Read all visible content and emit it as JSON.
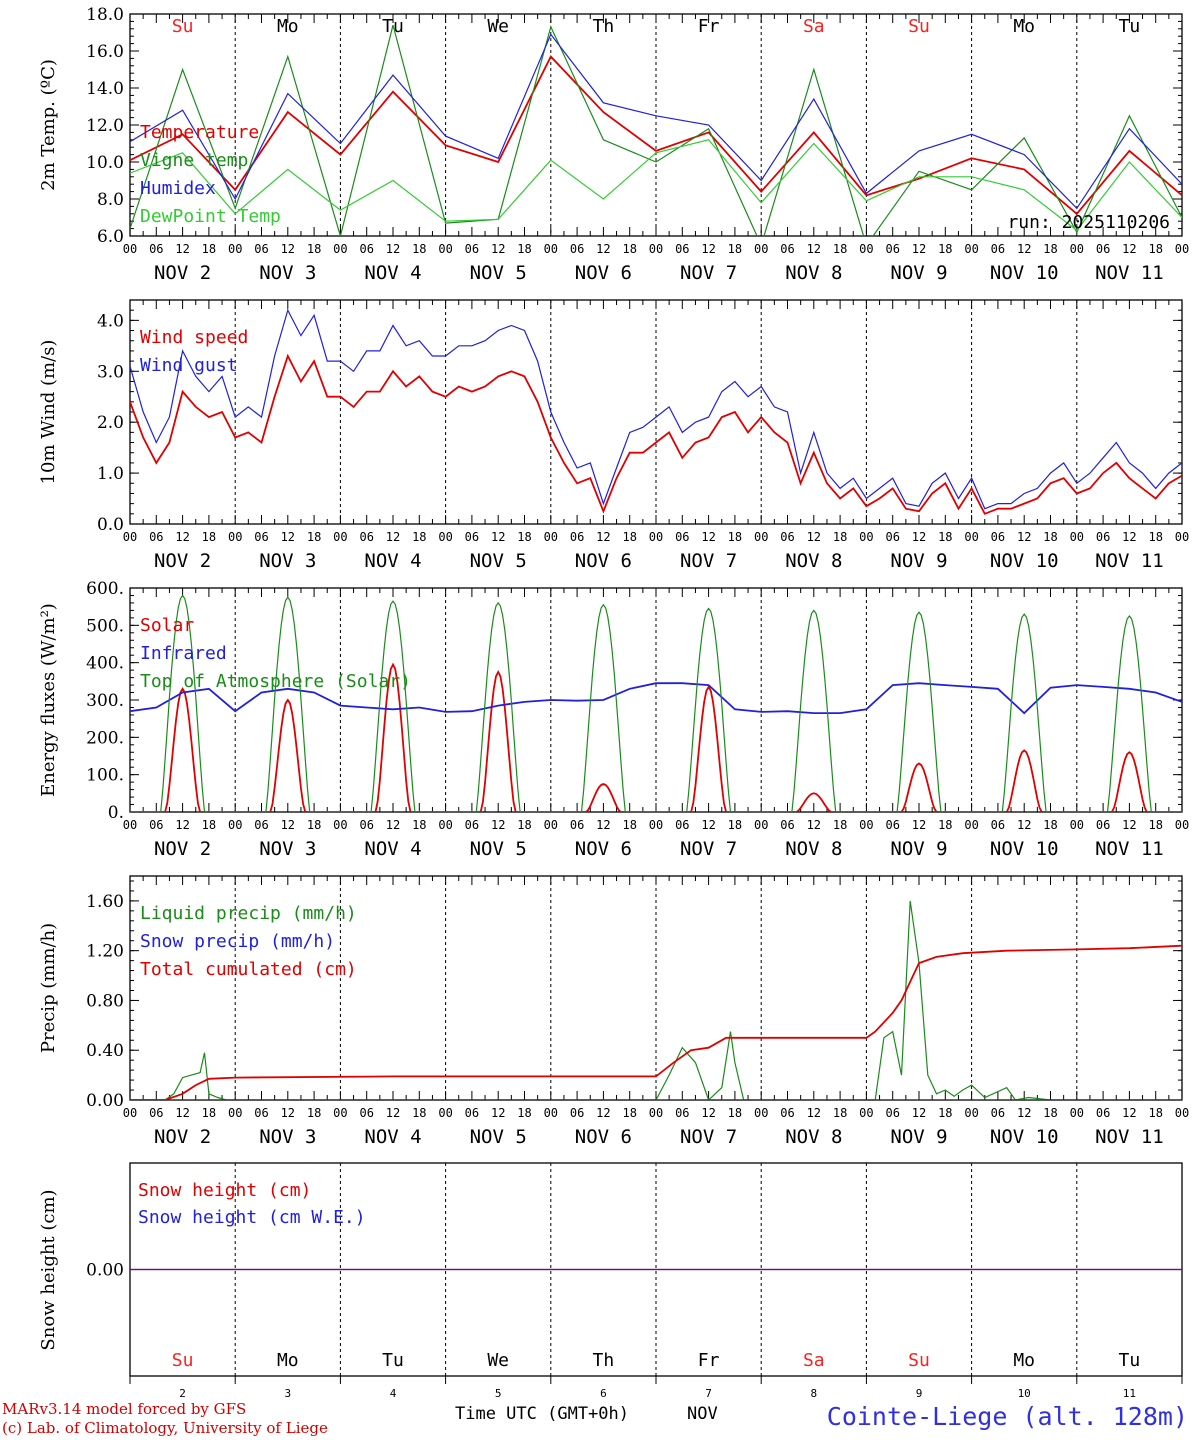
{
  "page": {
    "footer_line1": "MARv3.14 model forced by GFS",
    "footer_line2": "(c) Lab. of Climatology, University of Liege",
    "xaxis_title": "Time UTC (GMT+0h)",
    "xaxis_month": "NOV",
    "station": "Cointe-Liege (alt. 128m)",
    "run_label": "run: 2025110206"
  },
  "colors": {
    "red": "#e00000",
    "green": "#1a8c1a",
    "blue": "#2020dd",
    "lightgreen": "#33cc33",
    "weekend": "#ff2020"
  },
  "day_names": [
    "Su",
    "Mo",
    "Tu",
    "We",
    "Th",
    "Fr",
    "Sa",
    "Su",
    "Mo",
    "Tu"
  ],
  "weekend_flags": [
    1,
    0,
    0,
    0,
    0,
    0,
    1,
    1,
    0,
    0
  ],
  "date_labels": [
    "NOV  2",
    "NOV  3",
    "NOV  4",
    "NOV  5",
    "NOV  6",
    "NOV  7",
    "NOV  8",
    "NOV  9",
    "NOV 10",
    "NOV 11"
  ],
  "date_numbers": [
    "2",
    "3",
    "4",
    "5",
    "6",
    "7",
    "8",
    "9",
    "10",
    "11"
  ],
  "hour_labels": [
    "00",
    "06",
    "12",
    "18"
  ],
  "chart_data": [
    {
      "id": "temp",
      "type": "line",
      "ylabel": "2m Temp. (ºC)",
      "ylim": [
        6.0,
        18.0
      ],
      "yticks": [
        "6.0",
        "8.0",
        "10.0",
        "12.0",
        "14.0",
        "16.0",
        "18.0"
      ],
      "yticks_values": [
        6,
        8,
        10,
        12,
        14,
        16,
        18
      ],
      "x_hours_range": [
        0,
        240
      ],
      "series": [
        {
          "name": "Temperature",
          "color": "red",
          "x": [
            0,
            12,
            24,
            36,
            48,
            60,
            72,
            84,
            96,
            108,
            120,
            132,
            144,
            156,
            168,
            180,
            192,
            204,
            216,
            228,
            240
          ],
          "values": [
            10.1,
            11.5,
            8.5,
            12.7,
            10.4,
            13.8,
            10.9,
            10.0,
            15.7,
            12.7,
            10.6,
            11.6,
            8.4,
            11.6,
            8.2,
            9.1,
            10.2,
            9.6,
            7.2,
            10.6,
            8.2
          ]
        },
        {
          "name": "Vigne temp",
          "color": "green",
          "x": [
            0,
            12,
            24,
            36,
            48,
            60,
            72,
            84,
            96,
            108,
            120,
            132,
            144,
            156,
            168,
            180,
            192,
            204,
            216,
            228,
            240
          ],
          "values": [
            6.4,
            15.0,
            7.5,
            15.7,
            6.0,
            17.4,
            6.7,
            6.9,
            17.3,
            11.2,
            10.0,
            11.8,
            5.5,
            15.0,
            5.5,
            9.5,
            8.5,
            11.3,
            6.2,
            12.5,
            7.0
          ]
        },
        {
          "name": "Humidex",
          "color": "blue",
          "x": [
            0,
            12,
            24,
            36,
            48,
            60,
            72,
            84,
            96,
            108,
            120,
            132,
            144,
            156,
            168,
            180,
            192,
            204,
            216,
            228,
            240
          ],
          "values": [
            11.1,
            12.8,
            8.0,
            13.7,
            11.0,
            14.7,
            11.4,
            10.2,
            16.9,
            13.2,
            12.5,
            12.0,
            9.0,
            13.4,
            8.3,
            10.6,
            11.5,
            10.4,
            7.5,
            11.8,
            8.8
          ]
        },
        {
          "name": "DewPoint Temp",
          "color": "lightgreen",
          "x": [
            0,
            12,
            24,
            36,
            48,
            60,
            72,
            84,
            96,
            108,
            120,
            132,
            144,
            156,
            168,
            180,
            192,
            204,
            216,
            228,
            240
          ],
          "values": [
            9.4,
            10.5,
            7.2,
            9.6,
            7.4,
            9.0,
            6.8,
            6.9,
            10.1,
            8.0,
            10.5,
            11.2,
            7.8,
            11.0,
            7.9,
            9.2,
            9.2,
            8.5,
            6.3,
            10.0,
            7.0
          ]
        }
      ]
    },
    {
      "id": "wind",
      "type": "line",
      "ylabel": "10m Wind (m/s)",
      "ylim": [
        0.0,
        4.4
      ],
      "yticks": [
        "0.0",
        "1.0",
        "2.0",
        "3.0",
        "4.0"
      ],
      "yticks_values": [
        0,
        1,
        2,
        3,
        4
      ],
      "x_hours_range": [
        0,
        240
      ],
      "series": [
        {
          "name": "Wind speed",
          "color": "red",
          "x": [
            0,
            3,
            6,
            9,
            12,
            15,
            18,
            21,
            24,
            27,
            30,
            33,
            36,
            39,
            42,
            45,
            48,
            51,
            54,
            57,
            60,
            63,
            66,
            69,
            72,
            75,
            78,
            81,
            84,
            87,
            90,
            93,
            96,
            99,
            102,
            105,
            108,
            111,
            114,
            117,
            120,
            123,
            126,
            129,
            132,
            135,
            138,
            141,
            144,
            147,
            150,
            153,
            156,
            159,
            162,
            165,
            168,
            171,
            174,
            177,
            180,
            183,
            186,
            189,
            192,
            195,
            198,
            201,
            204,
            207,
            210,
            213,
            216,
            219,
            222,
            225,
            228,
            231,
            234,
            237,
            240
          ],
          "values": [
            2.4,
            1.7,
            1.2,
            1.6,
            2.6,
            2.3,
            2.1,
            2.2,
            1.7,
            1.8,
            1.6,
            2.5,
            3.3,
            2.8,
            3.2,
            2.5,
            2.5,
            2.3,
            2.6,
            2.6,
            3.0,
            2.7,
            2.9,
            2.6,
            2.5,
            2.7,
            2.6,
            2.7,
            2.9,
            3.0,
            2.9,
            2.4,
            1.7,
            1.2,
            0.8,
            0.9,
            0.25,
            0.9,
            1.4,
            1.4,
            1.6,
            1.8,
            1.3,
            1.6,
            1.7,
            2.1,
            2.2,
            1.8,
            2.1,
            1.8,
            1.6,
            0.8,
            1.4,
            0.8,
            0.5,
            0.7,
            0.35,
            0.5,
            0.7,
            0.3,
            0.25,
            0.6,
            0.8,
            0.3,
            0.7,
            0.2,
            0.3,
            0.3,
            0.4,
            0.5,
            0.8,
            0.9,
            0.6,
            0.7,
            1.0,
            1.2,
            0.9,
            0.7,
            0.5,
            0.8,
            0.95
          ]
        },
        {
          "name": "Wind gust",
          "color": "blue",
          "x": [
            0,
            3,
            6,
            9,
            12,
            15,
            18,
            21,
            24,
            27,
            30,
            33,
            36,
            39,
            42,
            45,
            48,
            51,
            54,
            57,
            60,
            63,
            66,
            69,
            72,
            75,
            78,
            81,
            84,
            87,
            90,
            93,
            96,
            99,
            102,
            105,
            108,
            111,
            114,
            117,
            120,
            123,
            126,
            129,
            132,
            135,
            138,
            141,
            144,
            147,
            150,
            153,
            156,
            159,
            162,
            165,
            168,
            171,
            174,
            177,
            180,
            183,
            186,
            189,
            192,
            195,
            198,
            201,
            204,
            207,
            210,
            213,
            216,
            219,
            222,
            225,
            228,
            231,
            234,
            237,
            240
          ],
          "values": [
            3.1,
            2.2,
            1.6,
            2.1,
            3.4,
            2.9,
            2.6,
            2.9,
            2.1,
            2.3,
            2.1,
            3.3,
            4.2,
            3.7,
            4.1,
            3.2,
            3.2,
            3.0,
            3.4,
            3.4,
            3.9,
            3.5,
            3.6,
            3.3,
            3.3,
            3.5,
            3.5,
            3.6,
            3.8,
            3.9,
            3.8,
            3.2,
            2.2,
            1.6,
            1.1,
            1.2,
            0.4,
            1.1,
            1.8,
            1.9,
            2.1,
            2.3,
            1.8,
            2.0,
            2.1,
            2.6,
            2.8,
            2.5,
            2.7,
            2.3,
            2.2,
            1.0,
            1.8,
            1.0,
            0.7,
            0.9,
            0.5,
            0.7,
            0.9,
            0.4,
            0.35,
            0.8,
            1.0,
            0.5,
            0.9,
            0.3,
            0.4,
            0.4,
            0.6,
            0.7,
            1.0,
            1.2,
            0.8,
            1.0,
            1.3,
            1.6,
            1.2,
            1.0,
            0.7,
            1.0,
            1.2
          ]
        }
      ]
    },
    {
      "id": "flux",
      "type": "line",
      "ylabel": "Energy fluxes (W/m²)",
      "ylim": [
        0.0,
        600.0
      ],
      "yticks": [
        "0.",
        "100.",
        "200.",
        "300.",
        "400.",
        "500.",
        "600."
      ],
      "yticks_values": [
        0,
        100,
        200,
        300,
        400,
        500,
        600
      ],
      "x_hours_range": [
        0,
        240
      ],
      "series": [
        {
          "name": "Solar",
          "color": "red",
          "daily_peaks": [
            330,
            300,
            395,
            375,
            75,
            335,
            50,
            130,
            165,
            160
          ]
        },
        {
          "name": "Infrared",
          "color": "blue",
          "x": [
            0,
            6,
            12,
            18,
            24,
            30,
            36,
            42,
            48,
            54,
            60,
            66,
            72,
            78,
            84,
            90,
            96,
            102,
            108,
            114,
            120,
            126,
            132,
            138,
            144,
            150,
            156,
            162,
            168,
            174,
            180,
            186,
            192,
            198,
            204,
            210,
            216,
            222,
            228,
            234,
            240
          ],
          "values": [
            270,
            280,
            320,
            330,
            270,
            320,
            330,
            320,
            285,
            280,
            275,
            280,
            268,
            270,
            285,
            295,
            300,
            298,
            300,
            330,
            345,
            345,
            340,
            275,
            268,
            270,
            265,
            265,
            275,
            340,
            345,
            340,
            335,
            330,
            265,
            333,
            340,
            335,
            330,
            320,
            295
          ]
        },
        {
          "name": "Top of Atmosphere (Solar)",
          "color": "green",
          "daily_peaks": [
            580,
            575,
            565,
            560,
            555,
            545,
            540,
            535,
            530,
            525
          ]
        }
      ]
    },
    {
      "id": "precip",
      "type": "line",
      "ylabel": "Precip (mm/h)",
      "ylim": [
        0.0,
        1.8
      ],
      "yticks": [
        "0.00",
        "0.40",
        "0.80",
        "1.20",
        "1.60"
      ],
      "yticks_values": [
        0,
        0.4,
        0.8,
        1.2,
        1.6
      ],
      "x_hours_range": [
        0,
        240
      ],
      "series": [
        {
          "name": "Liquid precip (mm/h)",
          "color": "green",
          "x": [
            0,
            8,
            10,
            12,
            14,
            16,
            17,
            18,
            20,
            22,
            24,
            120,
            123,
            126,
            129,
            132,
            135,
            137,
            138,
            140,
            141,
            142,
            144,
            160,
            165,
            170,
            172,
            174,
            176,
            178,
            180,
            182,
            184,
            186,
            188,
            190,
            192,
            195,
            200,
            202,
            205,
            210,
            240
          ],
          "values": [
            0,
            0,
            0.05,
            0.18,
            0.2,
            0.22,
            0.38,
            0.05,
            0.02,
            0,
            0,
            0,
            0.2,
            0.42,
            0.3,
            0,
            0.1,
            0.55,
            0.3,
            0,
            0,
            0,
            0,
            0,
            0,
            0,
            0.5,
            0.55,
            0.2,
            1.6,
            1.1,
            0.2,
            0.05,
            0.08,
            0.03,
            0.08,
            0.12,
            0.02,
            0.1,
            0,
            0.02,
            0,
            0
          ]
        },
        {
          "name": "Snow precip (mm/h)",
          "color": "blue",
          "x": [
            0,
            240
          ],
          "values": [
            0,
            0
          ]
        },
        {
          "name": "Total cumulated (cm)",
          "color": "red",
          "x": [
            0,
            8,
            12,
            15,
            18,
            24,
            60,
            96,
            110,
            120,
            124,
            128,
            132,
            136,
            144,
            156,
            168,
            170,
            174,
            176,
            178,
            180,
            184,
            190,
            200,
            216,
            228,
            240
          ],
          "values": [
            0,
            0,
            0.05,
            0.12,
            0.17,
            0.18,
            0.19,
            0.19,
            0.19,
            0.19,
            0.3,
            0.4,
            0.42,
            0.5,
            0.5,
            0.5,
            0.5,
            0.55,
            0.7,
            0.8,
            0.95,
            1.1,
            1.15,
            1.18,
            1.2,
            1.21,
            1.22,
            1.24
          ]
        }
      ]
    },
    {
      "id": "snow",
      "type": "line",
      "ylabel": "Snow height (cm)",
      "ylim": [
        -1.0,
        1.0
      ],
      "yticks": [
        "0.00"
      ],
      "yticks_values": [
        0
      ],
      "x_hours_range": [
        0,
        240
      ],
      "series": [
        {
          "name": "Snow height (cm)",
          "color": "red",
          "x": [
            0,
            240
          ],
          "values": [
            0,
            0
          ]
        },
        {
          "name": "Snow height (cm W.E.)",
          "color": "blue",
          "x": [
            0,
            240
          ],
          "values": [
            0,
            0
          ]
        }
      ]
    }
  ]
}
